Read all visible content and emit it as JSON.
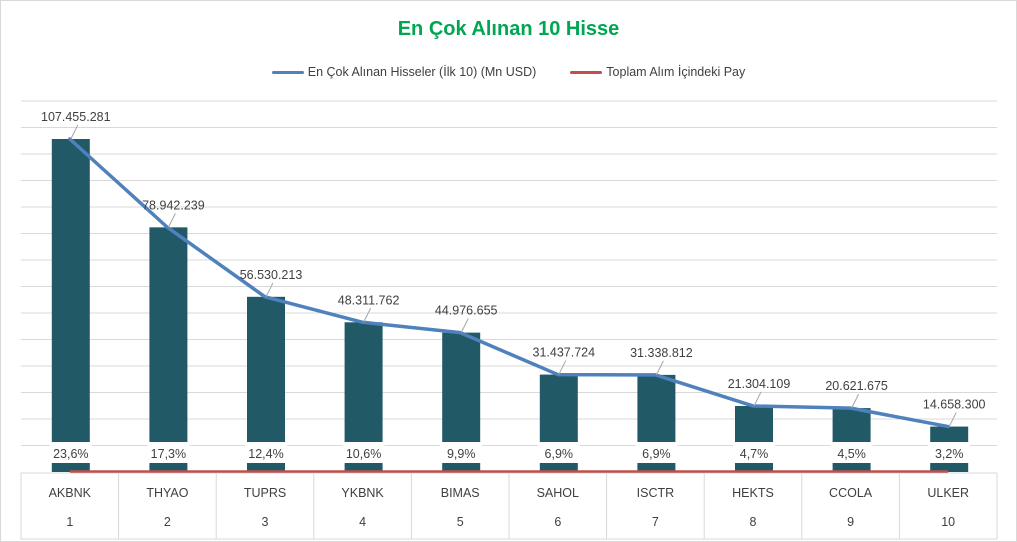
{
  "colors": {
    "title": "#00a651",
    "bar": "#215967",
    "line_value": "#4f81bd",
    "line_share": "#c0504d",
    "text": "#404040",
    "grid": "#d9d9d9"
  },
  "chart_data": {
    "type": "bar",
    "title": "En Çok Alınan 10 Hisse",
    "legend_position": "top-center",
    "grid": true,
    "categories": [
      "AKBNK",
      "THYAO",
      "TUPRS",
      "YKBNK",
      "BIMAS",
      "SAHOL",
      "ISCTR",
      "HEKTS",
      "CCOLA",
      "ULKER"
    ],
    "ranks": [
      "1",
      "2",
      "3",
      "4",
      "5",
      "6",
      "7",
      "8",
      "9",
      "10"
    ],
    "values": [
      107455281,
      78942239,
      56530213,
      48311762,
      44976655,
      31437724,
      31338812,
      21304109,
      20621675,
      14658300
    ],
    "value_labels": [
      "107.455.281",
      "78.942.239",
      "56.530.213",
      "48.311.762",
      "44.976.655",
      "31.437.724",
      "31.338.812",
      "21.304.109",
      "20.621.675",
      "14.658.300"
    ],
    "shares": [
      23.6,
      17.3,
      12.4,
      10.6,
      9.9,
      6.9,
      6.9,
      4.7,
      4.5,
      3.2
    ],
    "share_labels": [
      "23,6%",
      "17,3%",
      "12,4%",
      "10,6%",
      "9,9%",
      "6,9%",
      "6,9%",
      "4,7%",
      "4,5%",
      "3,2%"
    ],
    "series": [
      {
        "name": "En Çok Alınan Hisseler (İlk 10) (Mn USD)",
        "type": "line",
        "color": "#4f81bd"
      },
      {
        "name": "Toplam Alım İçindeki Pay",
        "type": "line",
        "color": "#c0504d"
      }
    ],
    "ylim": [
      0,
      115000000
    ]
  }
}
